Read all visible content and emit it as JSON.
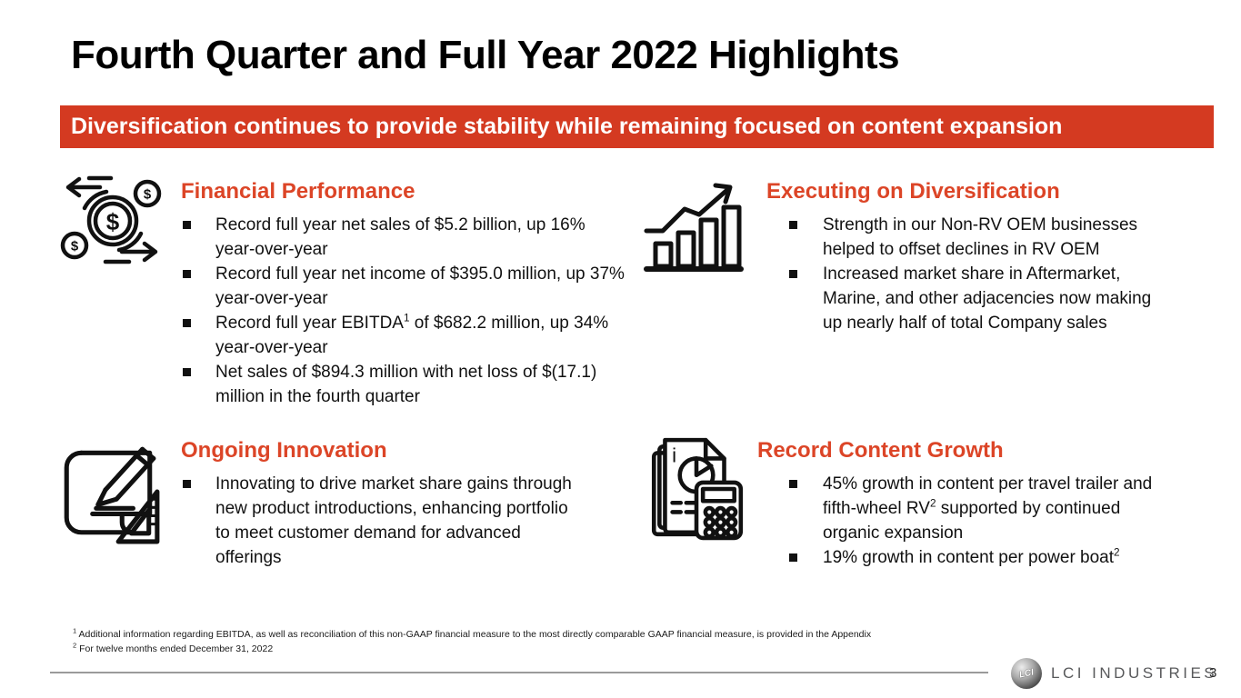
{
  "slide": {
    "title": "Fourth Quarter and Full Year 2022 Highlights",
    "banner": "Diversification continues to provide stability while remaining focused on content expansion"
  },
  "colors": {
    "banner_red": "#d43a21",
    "heading_red": "#dc4527",
    "text_black": "#111111",
    "line_gray": "#9a9a9a",
    "brand_gray": "#58595b"
  },
  "sections": [
    {
      "title": "Financial Performance",
      "icon": "money-flow-icon",
      "bullets": [
        [
          {
            "text": "Record full year net sales of $5.2 billion, up 16% year-over-year"
          }
        ],
        [
          {
            "text": "Record full year net income of $395.0 million, up 37% year-over-year"
          }
        ],
        [
          {
            "text": "Record full year EBITDA"
          },
          {
            "sup": "1"
          },
          {
            "text": " of $682.2 million, up 34% year-over-year"
          }
        ],
        [
          {
            "text": "Net sales of $894.3 million with net loss of $(17.1) million in the fourth quarter"
          }
        ]
      ]
    },
    {
      "title": "Executing on Diversification",
      "icon": "growth-chart-icon",
      "bullets": [
        [
          {
            "text": "Strength in our Non-RV OEM businesses helped to offset declines in RV OEM"
          }
        ],
        [
          {
            "text": "Increased market share in Aftermarket, Marine, and other adjacencies now making up nearly half of total Company sales"
          }
        ]
      ]
    },
    {
      "title": "Ongoing Innovation",
      "icon": "blueprint-pencil-icon",
      "bullets": [
        [
          {
            "text": "Innovating to drive market share gains through new product introductions, enhancing portfolio to meet customer demand for advanced offerings"
          }
        ]
      ]
    },
    {
      "title": "Record Content Growth",
      "icon": "documents-calculator-icon",
      "bullets": [
        [
          {
            "text": "45% growth in content per travel trailer and fifth-wheel RV"
          },
          {
            "sup": "2"
          },
          {
            "text": " supported by continued organic expansion"
          }
        ],
        [
          {
            "text": "19% growth in content per power boat"
          },
          {
            "sup": "2"
          }
        ]
      ]
    }
  ],
  "footnotes": [
    {
      "marker": "1",
      "text": "Additional information regarding EBITDA, as well as reconciliation of this non-GAAP financial measure to the most directly comparable GAAP financial measure, is provided in the Appendix"
    },
    {
      "marker": "2",
      "text": "For twelve months ended December 31, 2022"
    }
  ],
  "footer": {
    "logo_text": "LCI",
    "brand": "LCI INDUSTRIES",
    "page_number": "3"
  }
}
